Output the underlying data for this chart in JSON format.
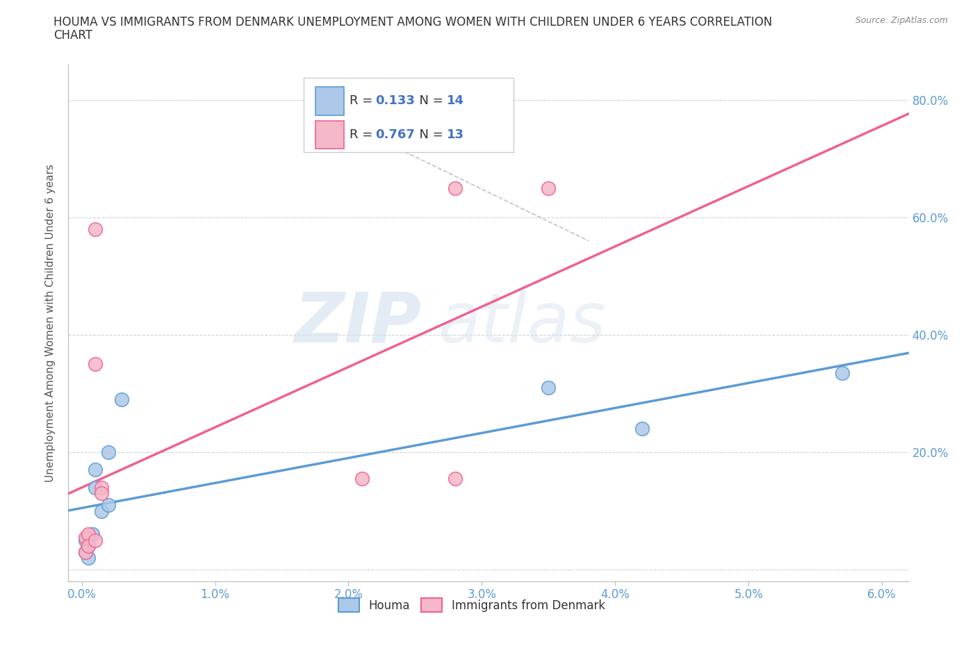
{
  "title_line1": "HOUMA VS IMMIGRANTS FROM DENMARK UNEMPLOYMENT AMONG WOMEN WITH CHILDREN UNDER 6 YEARS CORRELATION",
  "title_line2": "CHART",
  "source": "Source: ZipAtlas.com",
  "ylabel": "Unemployment Among Women with Children Under 6 years",
  "x_ticks": [
    0.0,
    0.01,
    0.02,
    0.03,
    0.04,
    0.05,
    0.06
  ],
  "x_tick_labels": [
    "0.0%",
    "1.0%",
    "2.0%",
    "3.0%",
    "4.0%",
    "5.0%",
    "6.0%"
  ],
  "y_ticks": [
    0.0,
    0.2,
    0.4,
    0.6,
    0.8
  ],
  "y_tick_labels_right": [
    "",
    "20.0%",
    "40.0%",
    "60.0%",
    "80.0%"
  ],
  "xlim": [
    -0.001,
    0.062
  ],
  "ylim": [
    -0.02,
    0.86
  ],
  "houma_x": [
    0.0003,
    0.0003,
    0.0005,
    0.0005,
    0.0008,
    0.001,
    0.001,
    0.0015,
    0.002,
    0.002,
    0.003,
    0.035,
    0.042,
    0.057
  ],
  "houma_y": [
    0.05,
    0.03,
    0.04,
    0.02,
    0.06,
    0.14,
    0.17,
    0.1,
    0.11,
    0.2,
    0.29,
    0.31,
    0.24,
    0.335
  ],
  "denmark_x": [
    0.0003,
    0.0003,
    0.0005,
    0.0005,
    0.001,
    0.001,
    0.001,
    0.0015,
    0.0015,
    0.021,
    0.028,
    0.028,
    0.035
  ],
  "denmark_y": [
    0.055,
    0.03,
    0.06,
    0.04,
    0.05,
    0.58,
    0.35,
    0.14,
    0.13,
    0.155,
    0.155,
    0.65,
    0.65
  ],
  "houma_color": "#adc8e8",
  "denmark_color": "#f5b8c8",
  "houma_edge_color": "#5b9bd5",
  "denmark_edge_color": "#f06090",
  "houma_line_color": "#5b9bd5",
  "denmark_line_color": "#f06090",
  "R_houma": 0.133,
  "N_houma": 14,
  "R_denmark": 0.767,
  "N_denmark": 13,
  "watermark_zip": "ZIP",
  "watermark_atlas": "atlas",
  "background_color": "#ffffff",
  "grid_color": "#cccccc",
  "tick_color": "#5b9bd5",
  "label_color": "#555555"
}
